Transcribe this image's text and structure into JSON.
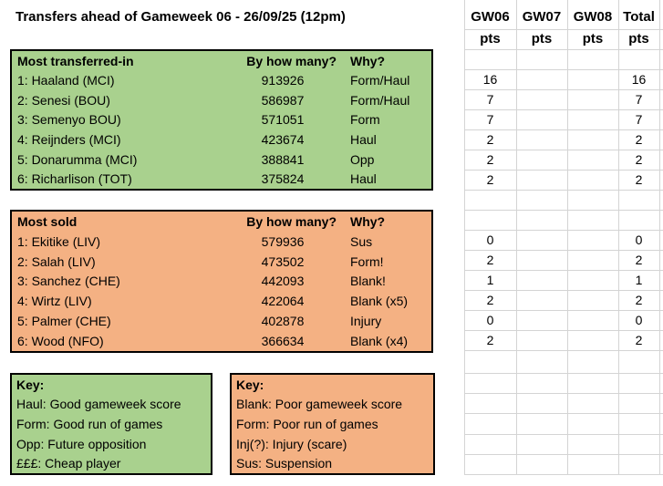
{
  "title": "Transfers ahead of Gameweek 06 - 26/09/25 (12pm)",
  "pts_header": {
    "columns": [
      {
        "label": "GW06",
        "sub": "pts"
      },
      {
        "label": "GW07",
        "sub": "pts"
      },
      {
        "label": "GW08",
        "sub": "pts"
      },
      {
        "label": "Total",
        "sub": "pts"
      }
    ]
  },
  "tables": [
    {
      "id": "most-transferred-in",
      "color": "#a9d18e",
      "header": {
        "title": "Most transferred-in",
        "count_label": "By how many?",
        "why_label": "Why?"
      },
      "rows": [
        {
          "player": "1: Haaland (MCI)",
          "count": "913926",
          "why": "Form/Haul",
          "pts": {
            "gw06": "16",
            "gw07": "",
            "gw08": "",
            "total": "16"
          }
        },
        {
          "player": "2: Senesi (BOU)",
          "count": "586987",
          "why": "Form/Haul",
          "pts": {
            "gw06": "7",
            "gw07": "",
            "gw08": "",
            "total": "7"
          }
        },
        {
          "player": "3: Semenyo BOU)",
          "count": "571051",
          "why": "Form",
          "pts": {
            "gw06": "7",
            "gw07": "",
            "gw08": "",
            "total": "7"
          }
        },
        {
          "player": "4: Reijnders (MCI)",
          "count": "423674",
          "why": "Haul",
          "pts": {
            "gw06": "2",
            "gw07": "",
            "gw08": "",
            "total": "2"
          }
        },
        {
          "player": "5: Donarumma (MCI)",
          "count": "388841",
          "why": "Opp",
          "pts": {
            "gw06": "2",
            "gw07": "",
            "gw08": "",
            "total": "2"
          }
        },
        {
          "player": "6: Richarlison (TOT)",
          "count": "375824",
          "why": "Haul",
          "pts": {
            "gw06": "2",
            "gw07": "",
            "gw08": "",
            "total": "2"
          }
        }
      ]
    },
    {
      "id": "most-sold",
      "color": "#f4b183",
      "header": {
        "title": "Most sold",
        "count_label": "By how many?",
        "why_label": "Why?"
      },
      "rows": [
        {
          "player": "1: Ekitike (LIV)",
          "count": "579936",
          "why": "Sus",
          "pts": {
            "gw06": "0",
            "gw07": "",
            "gw08": "",
            "total": "0"
          }
        },
        {
          "player": "2: Salah (LIV)",
          "count": "473502",
          "why": "Form!",
          "pts": {
            "gw06": "2",
            "gw07": "",
            "gw08": "",
            "total": "2"
          }
        },
        {
          "player": "3: Sanchez (CHE)",
          "count": "442093",
          "why": "Blank!",
          "pts": {
            "gw06": "1",
            "gw07": "",
            "gw08": "",
            "total": "1"
          }
        },
        {
          "player": "4: Wirtz (LIV)",
          "count": "422064",
          "why": "Blank (x5)",
          "pts": {
            "gw06": "2",
            "gw07": "",
            "gw08": "",
            "total": "2"
          }
        },
        {
          "player": "5: Palmer (CHE)",
          "count": "402878",
          "why": "Injury",
          "pts": {
            "gw06": "0",
            "gw07": "",
            "gw08": "",
            "total": "0"
          }
        },
        {
          "player": "6: Wood (NFO)",
          "count": "366634",
          "why": "Blank (x4)",
          "pts": {
            "gw06": "2",
            "gw07": "",
            "gw08": "",
            "total": "2"
          }
        }
      ]
    }
  ],
  "keys": [
    {
      "id": "key-transferred-in",
      "color": "#a9d18e",
      "title": "Key:",
      "items": [
        "Haul: Good gameweek score",
        "Form: Good run of games",
        "Opp: Future opposition",
        "£££: Cheap player"
      ]
    },
    {
      "id": "key-sold",
      "color": "#f4b183",
      "title": "Key:",
      "items": [
        "Blank: Poor gameweek score",
        "Form: Poor run of games",
        "Inj(?): Injury (scare)",
        "Sus: Suspension"
      ]
    }
  ],
  "colors": {
    "green_fill": "#a9d18e",
    "orange_fill": "#f4b183",
    "box_border": "#000000",
    "gridline": "#d4d4d4",
    "text": "#000000",
    "background": "#ffffff"
  }
}
